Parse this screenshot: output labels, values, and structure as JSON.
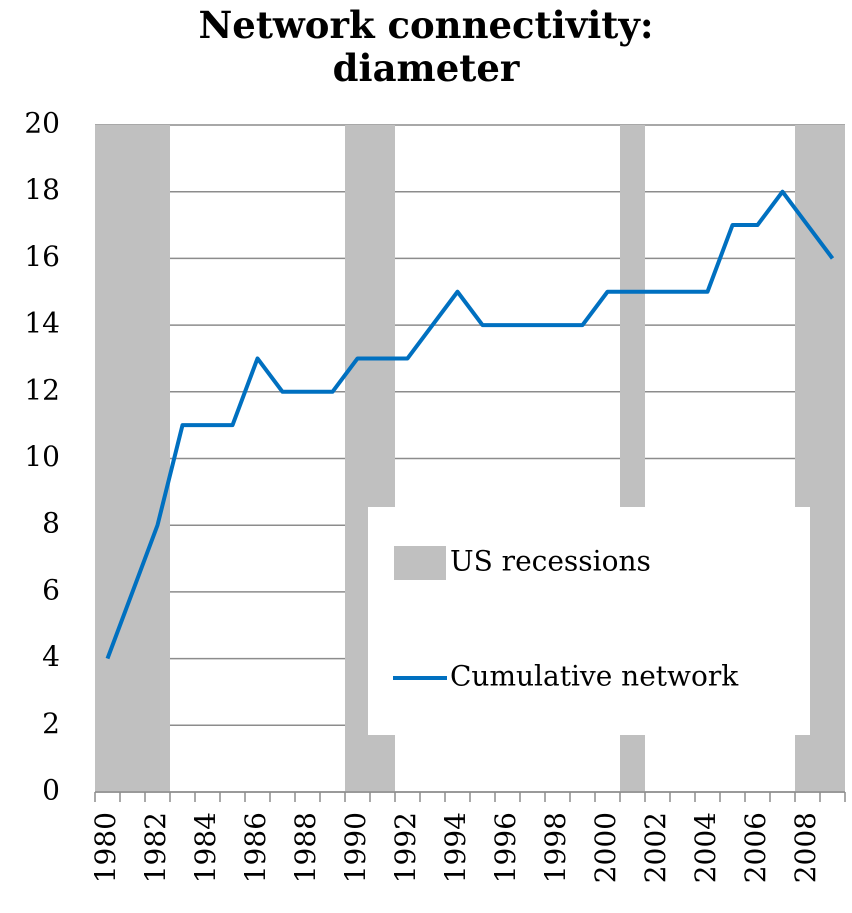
{
  "chart_data": {
    "type": "line",
    "title": "Network connectivity: diameter",
    "categories": [
      "1980",
      null,
      "1982",
      null,
      "1984",
      null,
      "1986",
      null,
      "1988",
      null,
      "1990",
      null,
      "1992",
      null,
      "1994",
      null,
      "1996",
      null,
      "1998",
      null,
      "2000",
      null,
      "2002",
      null,
      "2004",
      null,
      "2006",
      null,
      "2008",
      null
    ],
    "series": [
      {
        "name": "US recessions",
        "type": "bar",
        "color": "#c0c0c0",
        "values": [
          20,
          20,
          20,
          0,
          0,
          0,
          0,
          0,
          0,
          0,
          20,
          20,
          0,
          0,
          0,
          0,
          0,
          0,
          0,
          0,
          0,
          20,
          0,
          0,
          0,
          0,
          0,
          0,
          20,
          20
        ]
      },
      {
        "name": "Cumulative network",
        "type": "line",
        "color": "#0070c0",
        "values": [
          4,
          6,
          8,
          11,
          11,
          11,
          13,
          12,
          12,
          12,
          13,
          13,
          13,
          14,
          15,
          14,
          14,
          14,
          14,
          14,
          15,
          15,
          15,
          15,
          15,
          17,
          17,
          18,
          17,
          16
        ]
      }
    ],
    "ylim": [
      0,
      20
    ],
    "yticks": [
      0,
      2,
      4,
      6,
      8,
      10,
      12,
      14,
      16,
      18,
      20
    ],
    "grid": true,
    "legend": "lower right"
  }
}
